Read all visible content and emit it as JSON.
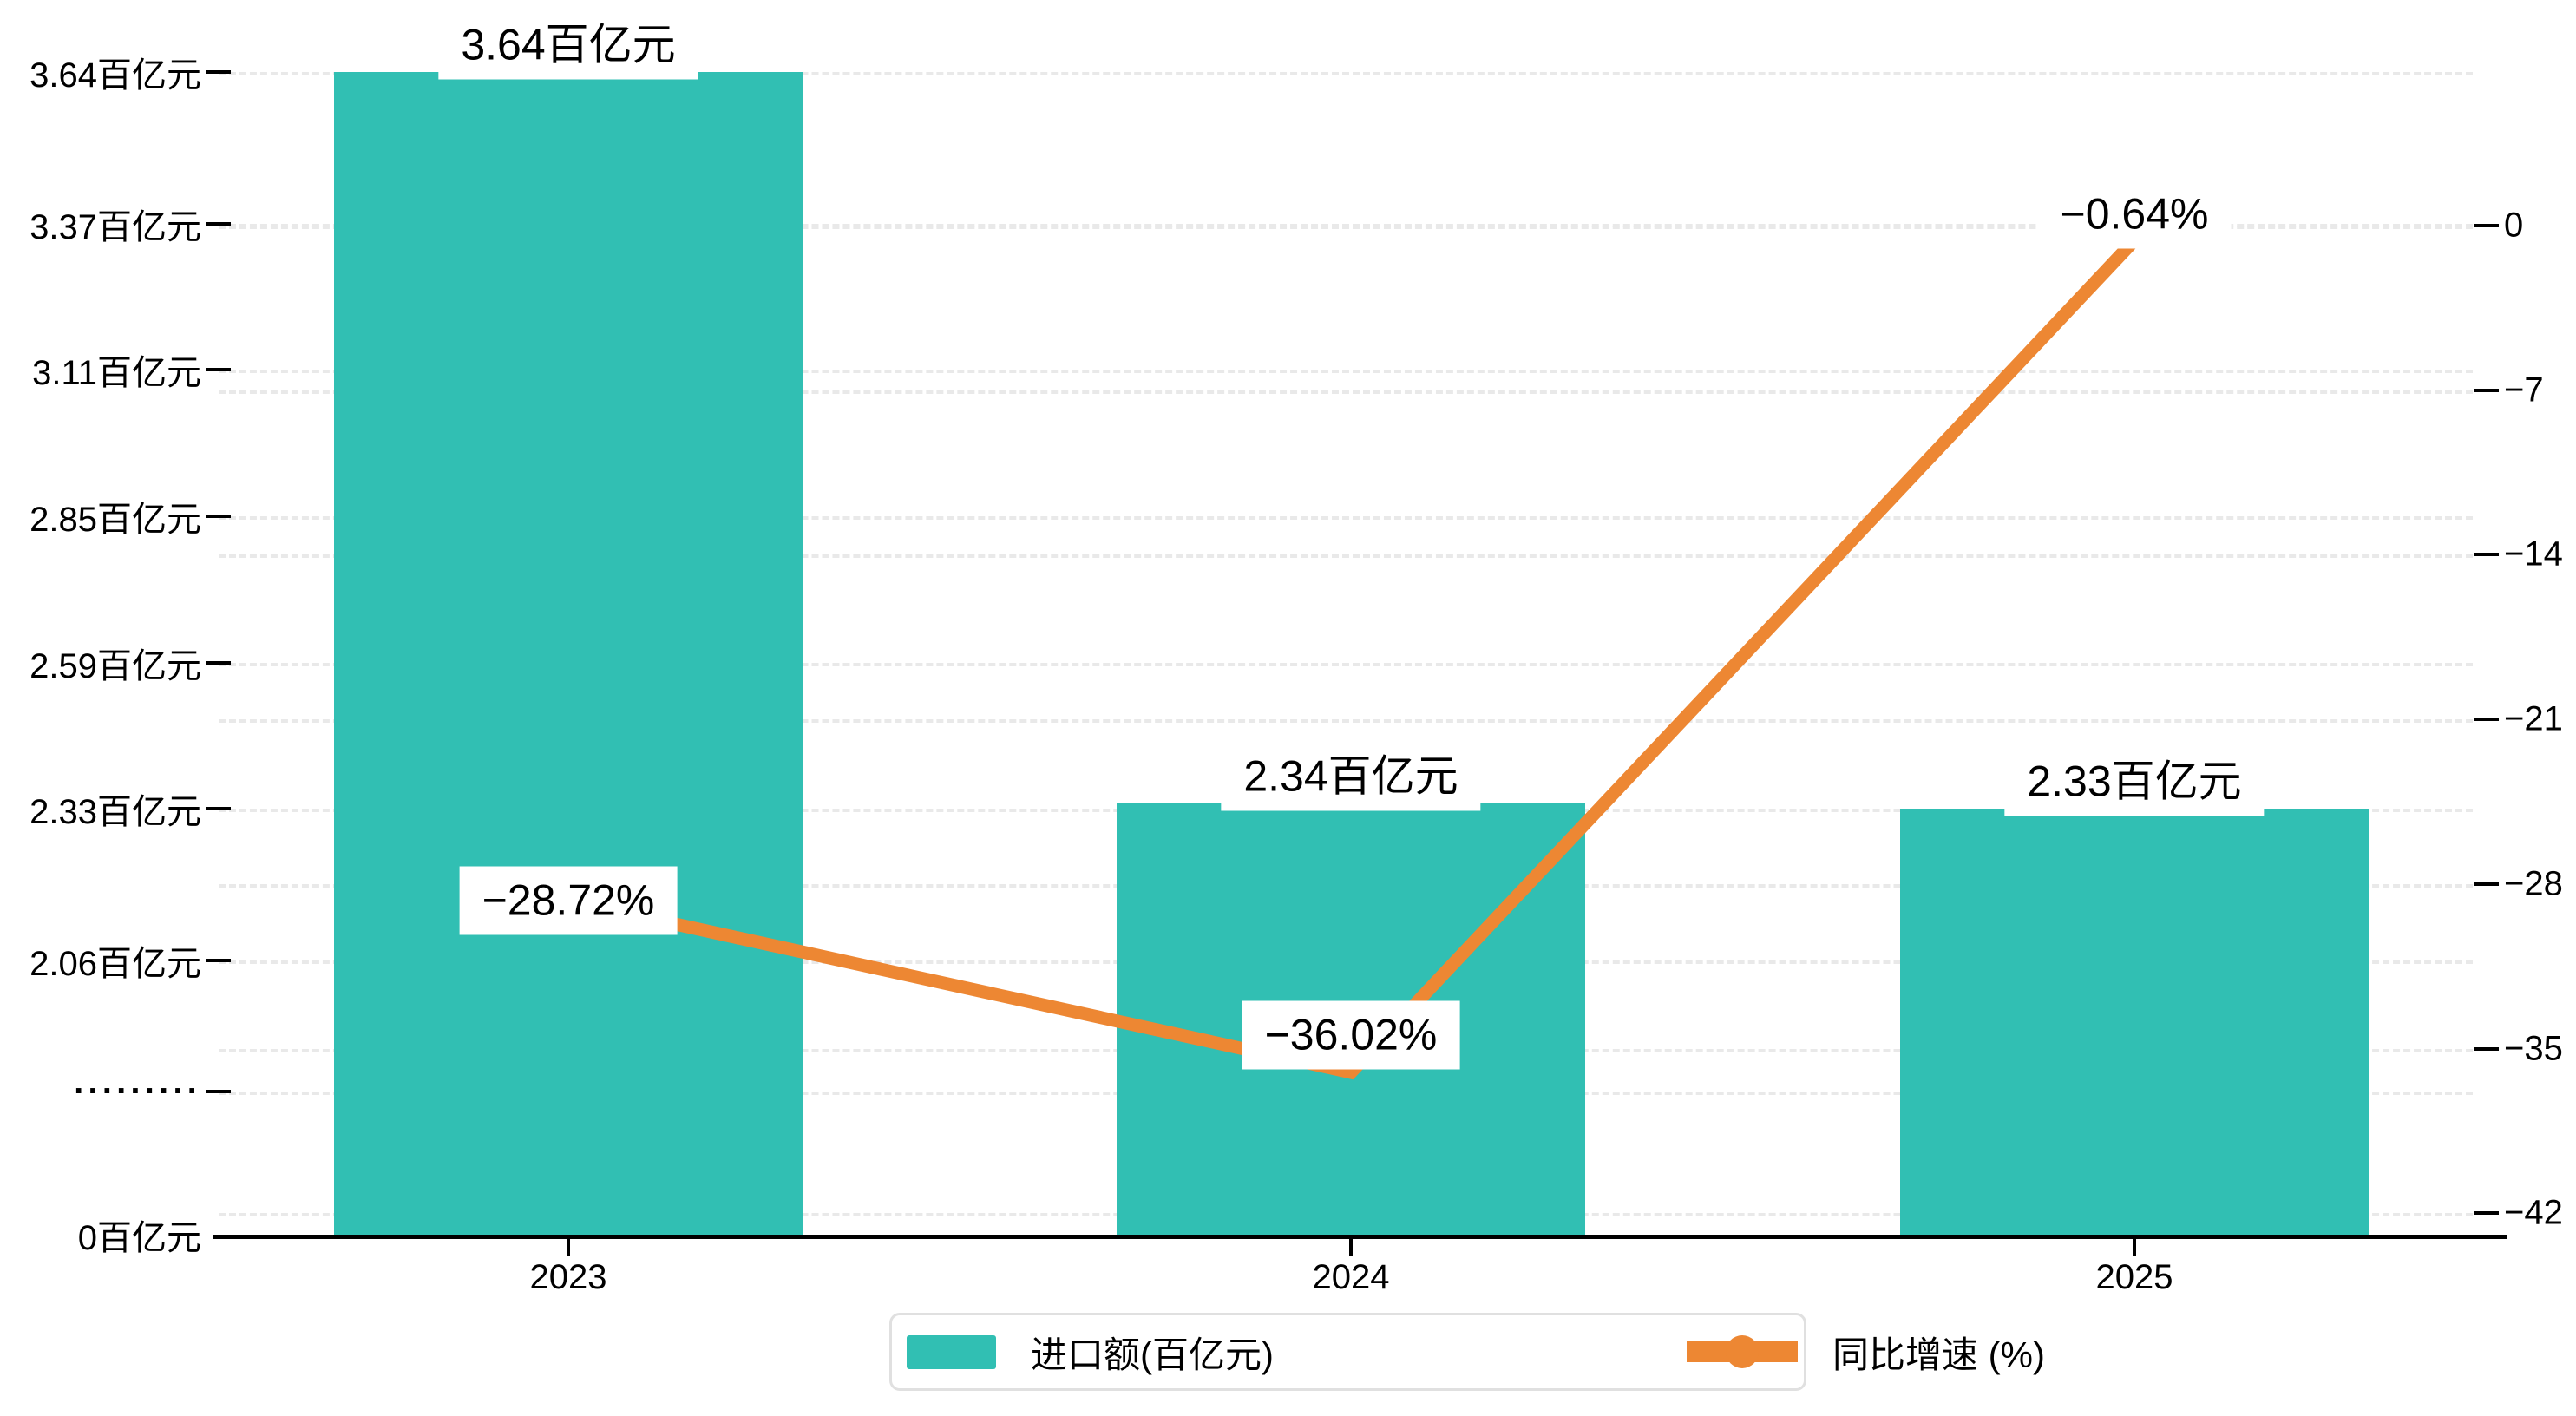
{
  "chart_data": {
    "type": "bar",
    "subtype": "bar-line-combo",
    "categories": [
      "2023",
      "2024",
      "2025"
    ],
    "series": [
      {
        "name": "进口额(百亿元)",
        "type": "bar",
        "unit": "百亿元",
        "color": "#31BFB3",
        "values": [
          3.64,
          2.34,
          2.33
        ],
        "labels": [
          "3.64百亿元",
          "2.34百亿元",
          "2.33百亿元"
        ]
      },
      {
        "name": "同比增速 (%)",
        "type": "line",
        "unit": "%",
        "color": "#ED8733",
        "values": [
          -28.72,
          -36.02,
          -0.64
        ],
        "labels": [
          "−28.72%",
          "−36.02%",
          "−0.64%"
        ]
      }
    ],
    "left_axis": {
      "title": "",
      "tick_labels": [
        "3.64百亿元",
        "3.37百亿元",
        "3.11百亿元",
        "2.85百亿元",
        "2.59百亿元",
        "2.33百亿元",
        "2.06百亿元",
        "·········",
        "0百亿元"
      ],
      "tick_values": [
        3.64,
        3.37,
        3.11,
        2.85,
        2.59,
        2.33,
        2.06,
        null,
        0
      ],
      "break_marker": "·········",
      "range_top": 3.64,
      "range_bottom_shown": 2.06,
      "axis_zero": 0
    },
    "right_axis": {
      "title": "",
      "tick_labels": [
        "0",
        "−7",
        "−14",
        "−21",
        "−28",
        "−35",
        "−42"
      ],
      "tick_values": [
        0,
        -7,
        -14,
        -21,
        -28,
        -35,
        -42
      ],
      "range": [
        -42,
        0
      ]
    },
    "x_axis": {
      "labels": [
        "2023",
        "2024",
        "2025"
      ]
    },
    "legend": [
      {
        "label": "进口额(百亿元)",
        "marker": "bar-swatch",
        "color": "#31BFB3"
      },
      {
        "label": "同比增速 (%)",
        "marker": "line-dot",
        "color": "#ED8733"
      }
    ],
    "legend_position": "bottom-center",
    "grid": "dashed",
    "title": ""
  },
  "colors": {
    "bar": "#31BFB3",
    "line": "#ED8733",
    "gridline": "#e9e9e9",
    "axis": "#000000",
    "text": "#000000",
    "legend_border": "#e0e0e0",
    "background": "#ffffff"
  }
}
